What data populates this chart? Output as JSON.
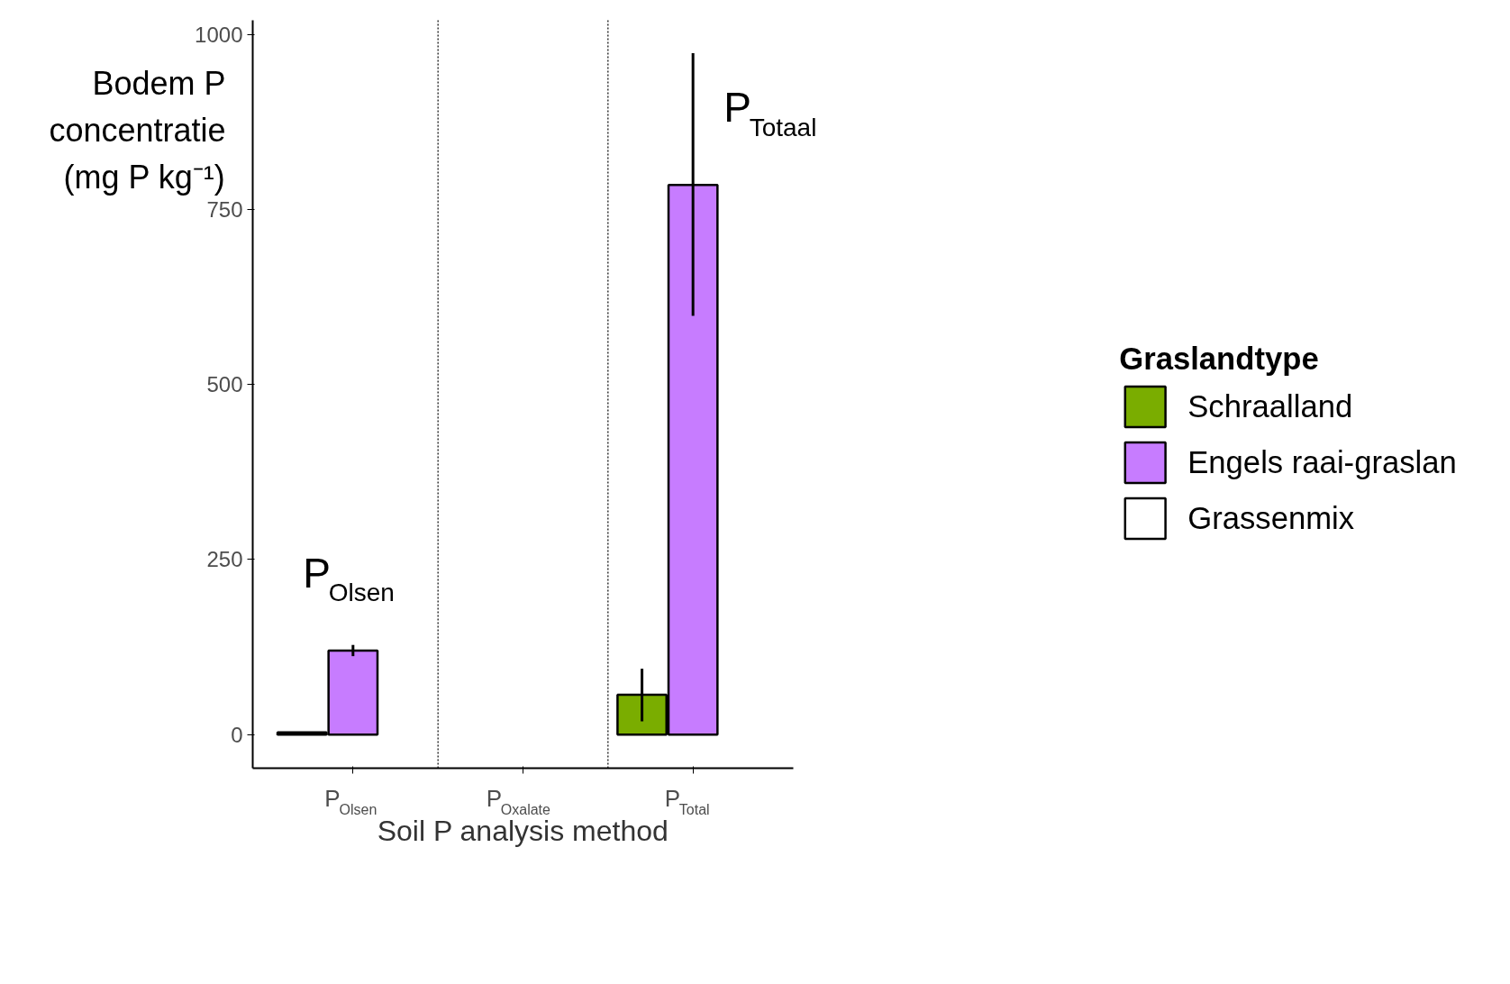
{
  "chart_data": {
    "type": "bar",
    "xlabel": "Soil P analysis method",
    "ylabel": "Bodem P concentratie (mg P kg⁻¹)",
    "legend_title": "Graslandtype",
    "categories": [
      "P$_{Olsen}$",
      "P$_{Oxalate}$",
      "P$_{Total}$"
    ],
    "series": [
      {
        "name": "Schraalland",
        "color": "#7aad00",
        "values": [
          3,
          null,
          57
        ],
        "errors": [
          null,
          null,
          [
            19,
            94
          ]
        ]
      },
      {
        "name": "Engels raai-graslan",
        "color": "#c77cff",
        "values": [
          120,
          null,
          785
        ],
        "errors": [
          [
            112,
            128
          ],
          null,
          [
            598,
            973
          ]
        ]
      },
      {
        "name": "Grassenmix",
        "color": "#ffffff",
        "values": [
          null,
          null,
          null
        ]
      }
    ],
    "ylim": [
      -48,
      1020
    ],
    "yticks": [
      0,
      250,
      500,
      750,
      1000
    ],
    "annotations": [
      "P$_{Olsen}$",
      "P$_{Totaal}$"
    ],
    "grid": false,
    "legend": "right"
  }
}
